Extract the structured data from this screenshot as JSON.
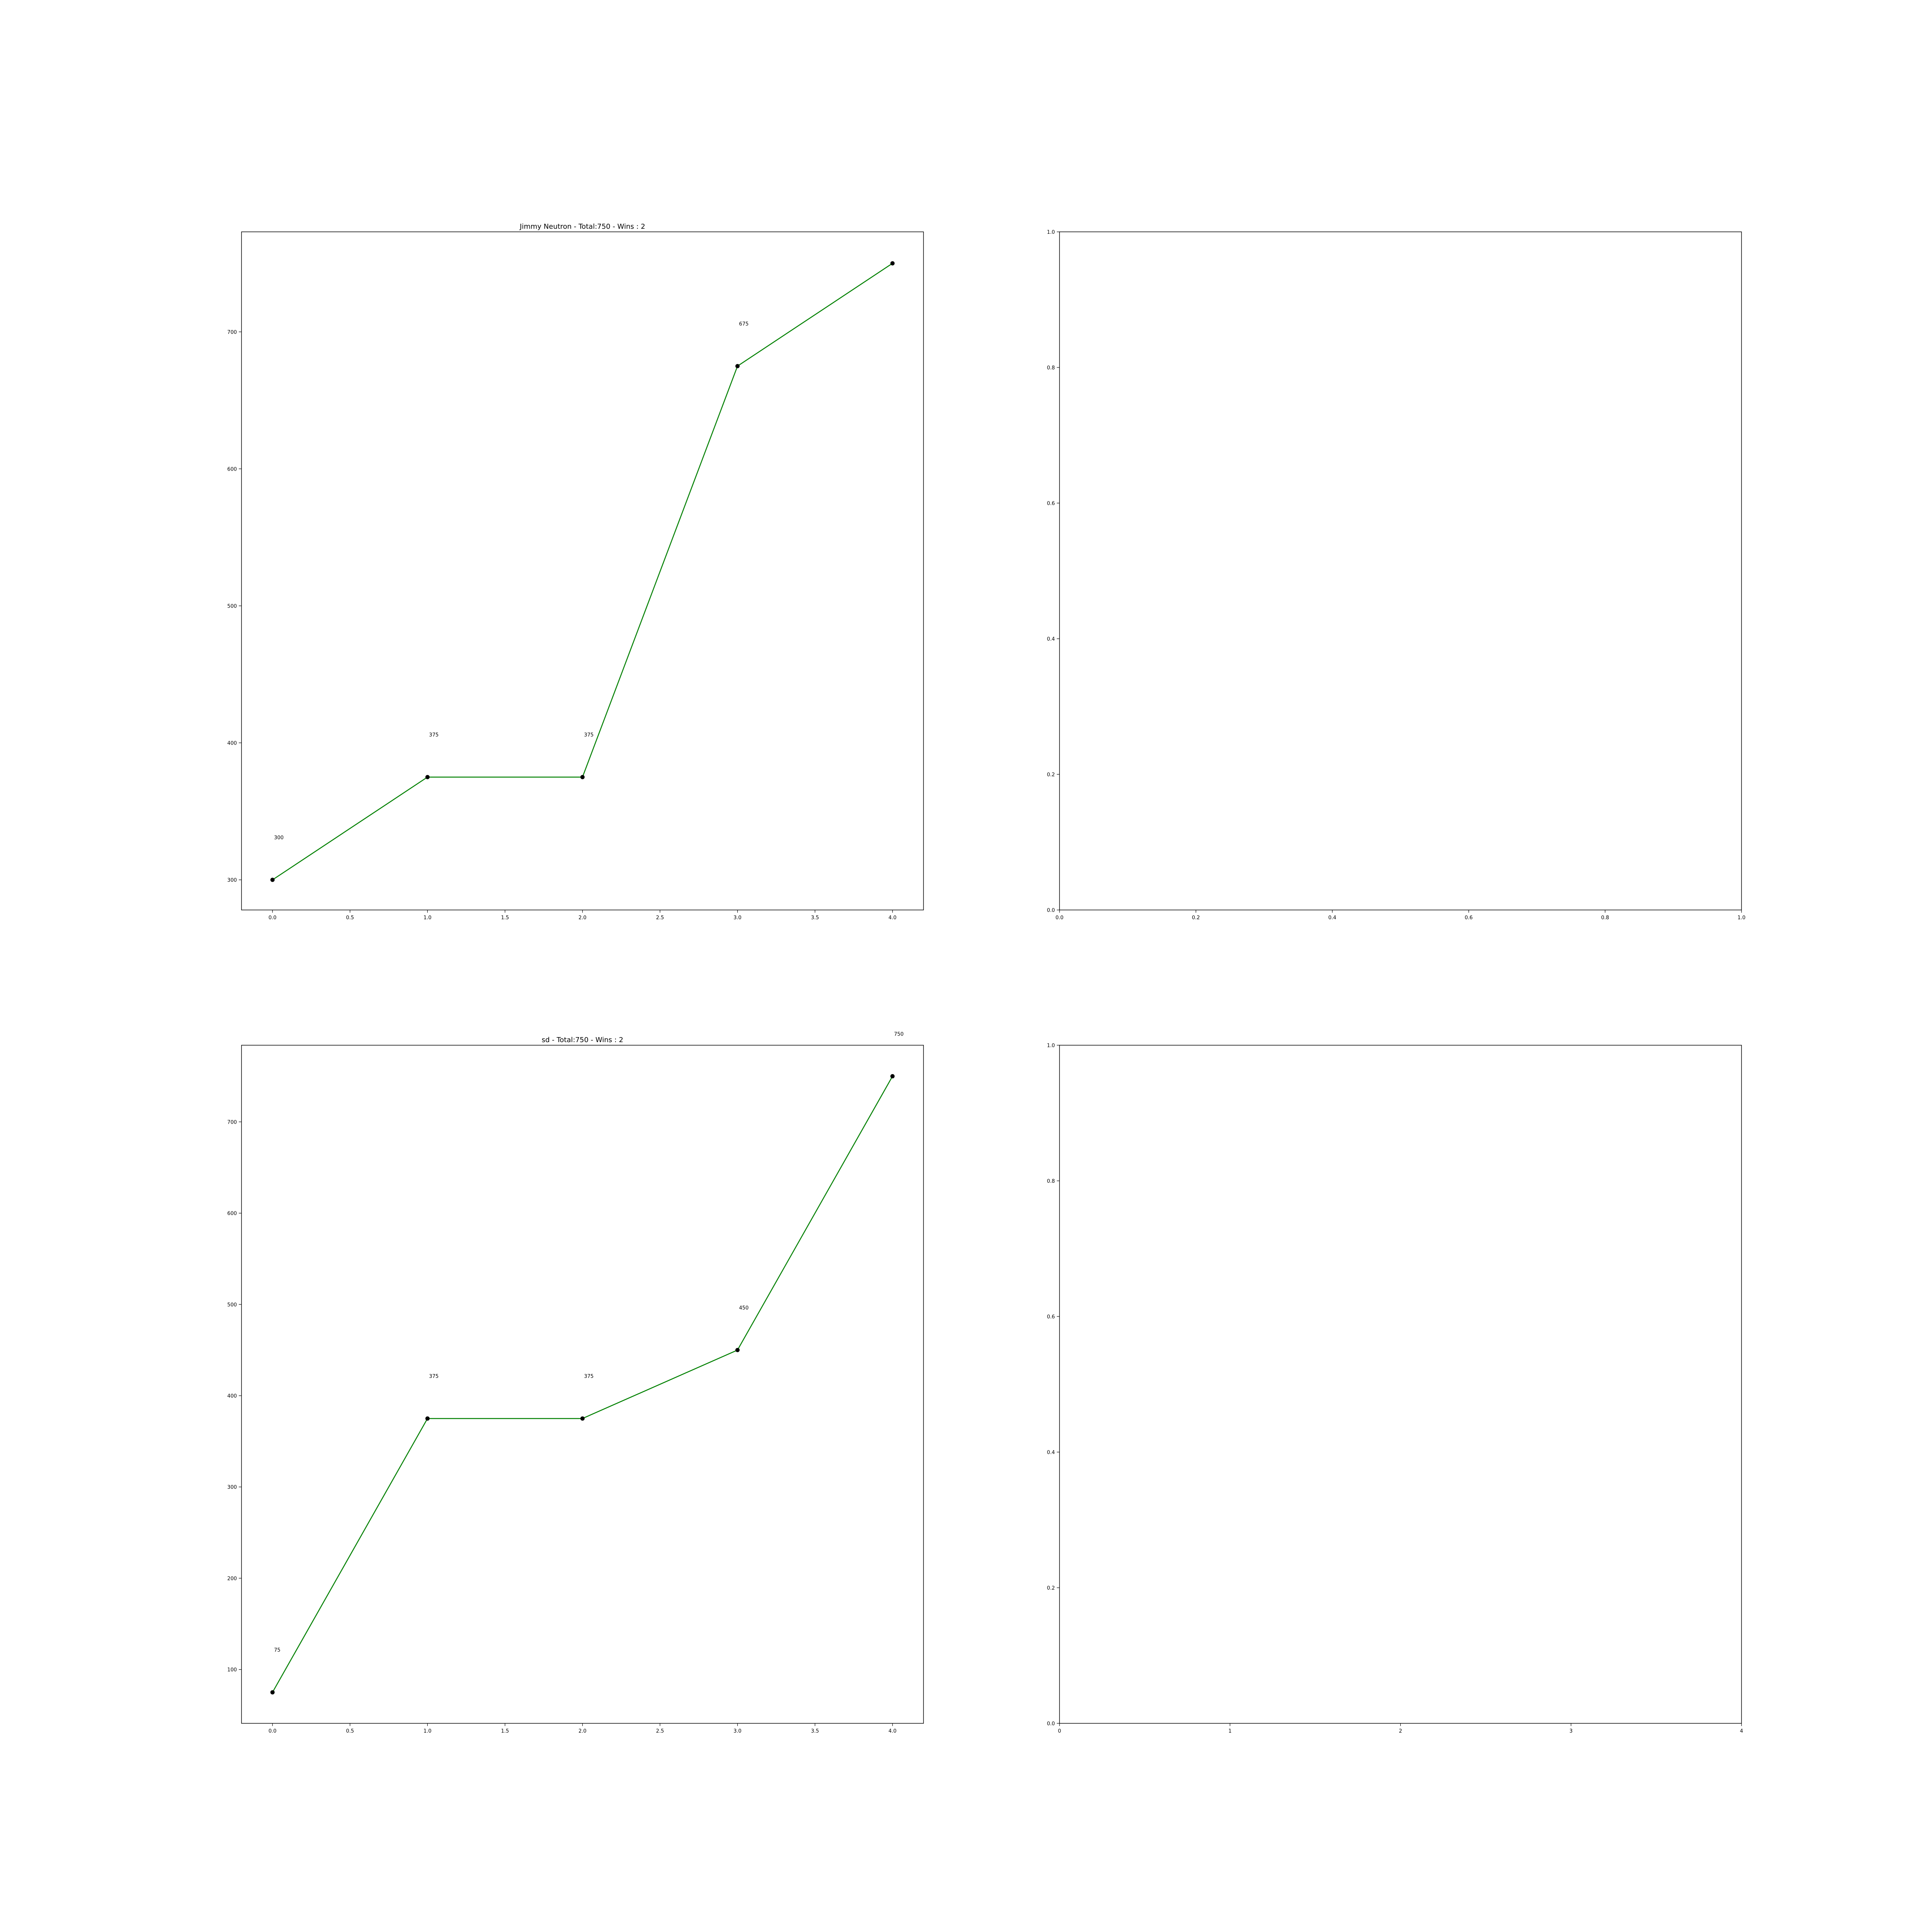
{
  "chart_data": [
    {
      "type": "line",
      "title": "Jimmy Neutron - Total:750 - Wins : 2",
      "xlabel": "",
      "ylabel": "",
      "x": [
        0,
        1,
        2,
        3,
        4
      ],
      "series": [
        {
          "values": [
            300,
            375,
            375,
            675,
            750
          ],
          "color": "#008000",
          "marker_color": "#000000"
        }
      ],
      "annotations": [
        {
          "x": 0,
          "y": 300,
          "text": "300"
        },
        {
          "x": 1,
          "y": 375,
          "text": "375"
        },
        {
          "x": 2,
          "y": 375,
          "text": "375"
        },
        {
          "x": 3,
          "y": 675,
          "text": "675"
        }
      ],
      "xlim": [
        -0.2,
        4.2
      ],
      "ylim": [
        278,
        773
      ],
      "xticks": [
        0.0,
        0.5,
        1.0,
        1.5,
        2.0,
        2.5,
        3.0,
        3.5,
        4.0
      ],
      "xtick_labels": [
        "0.0",
        "0.5",
        "1.0",
        "1.5",
        "2.0",
        "2.5",
        "3.0",
        "3.5",
        "4.0"
      ],
      "yticks": [
        300,
        400,
        500,
        600,
        700
      ],
      "ytick_labels": [
        "300",
        "400",
        "500",
        "600",
        "700"
      ],
      "grid": false
    },
    {
      "type": "line",
      "title": "",
      "xlabel": "",
      "ylabel": "",
      "x": [],
      "series": [],
      "annotations": [],
      "xlim": [
        0,
        1
      ],
      "ylim": [
        0,
        1
      ],
      "xticks": [
        0.0,
        0.2,
        0.4,
        0.6,
        0.8,
        1.0
      ],
      "xtick_labels": [
        "0.0",
        "0.2",
        "0.4",
        "0.6",
        "0.8",
        "1.0"
      ],
      "yticks": [
        0.0,
        0.2,
        0.4,
        0.6,
        0.8,
        1.0
      ],
      "ytick_labels": [
        "0.0",
        "0.2",
        "0.4",
        "0.6",
        "0.8",
        "1.0"
      ],
      "grid": false
    },
    {
      "type": "line",
      "title": "sd - Total:750 - Wins : 2",
      "xlabel": "",
      "ylabel": "",
      "x": [
        0,
        1,
        2,
        3,
        4
      ],
      "series": [
        {
          "values": [
            75,
            375,
            375,
            450,
            750
          ],
          "color": "#008000",
          "marker_color": "#000000"
        }
      ],
      "annotations": [
        {
          "x": 0,
          "y": 75,
          "text": "75"
        },
        {
          "x": 1,
          "y": 375,
          "text": "375"
        },
        {
          "x": 2,
          "y": 375,
          "text": "375"
        },
        {
          "x": 3,
          "y": 450,
          "text": "450"
        },
        {
          "x": 4,
          "y": 750,
          "text": "750"
        }
      ],
      "xlim": [
        -0.2,
        4.2
      ],
      "ylim": [
        41,
        784
      ],
      "xticks": [
        0.0,
        0.5,
        1.0,
        1.5,
        2.0,
        2.5,
        3.0,
        3.5,
        4.0
      ],
      "xtick_labels": [
        "0.0",
        "0.5",
        "1.0",
        "1.5",
        "2.0",
        "2.5",
        "3.0",
        "3.5",
        "4.0"
      ],
      "yticks": [
        100,
        200,
        300,
        400,
        500,
        600,
        700
      ],
      "ytick_labels": [
        "100",
        "200",
        "300",
        "400",
        "500",
        "600",
        "700"
      ],
      "grid": false
    },
    {
      "type": "line",
      "title": "",
      "xlabel": "",
      "ylabel": "",
      "x": [],
      "series": [],
      "annotations": [],
      "xlim": [
        0,
        4
      ],
      "ylim": [
        0,
        1
      ],
      "xticks": [
        0,
        1,
        2,
        3,
        4
      ],
      "xtick_labels": [
        "0",
        "1",
        "2",
        "3",
        "4"
      ],
      "yticks": [
        0.0,
        0.2,
        0.4,
        0.6,
        0.8,
        1.0
      ],
      "ytick_labels": [
        "0.0",
        "0.2",
        "0.4",
        "0.6",
        "0.8",
        "1.0"
      ],
      "grid": false
    }
  ]
}
